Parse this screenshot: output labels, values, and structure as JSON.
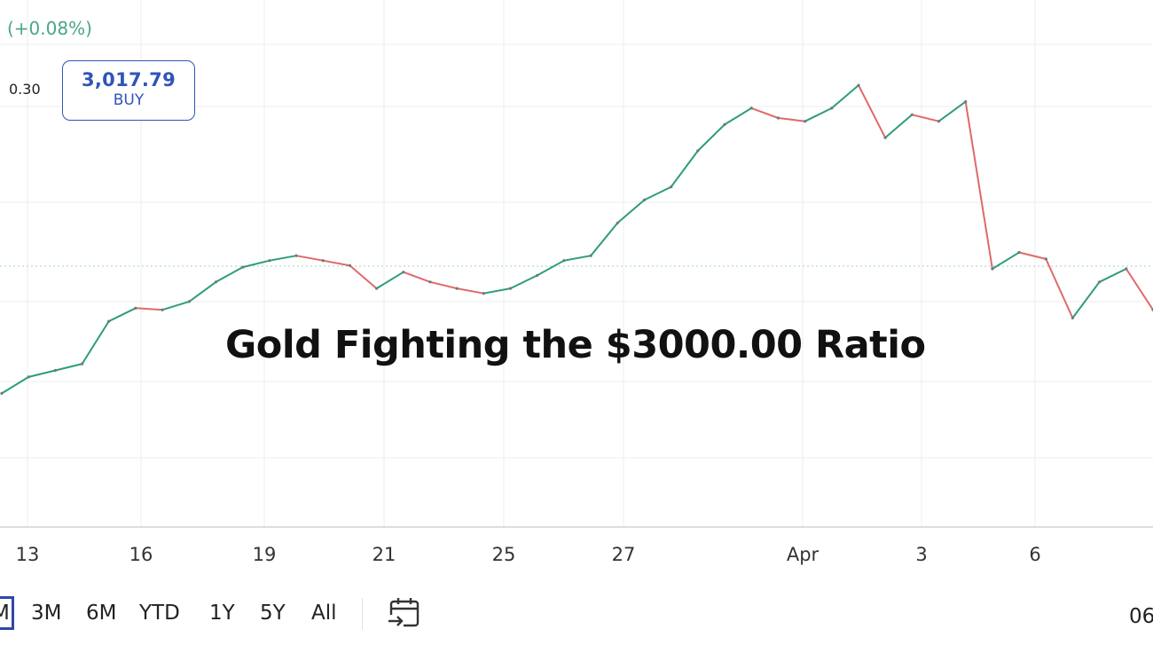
{
  "header": {
    "change": "(+0.08%)",
    "spread": "0.30",
    "buy_price": "3,017.79",
    "buy_label": "BUY"
  },
  "overlay_title": "Gold Fighting the $3000.00 Ratio",
  "range_selector": {
    "buttons": [
      "M",
      "3M",
      "6M",
      "YTD",
      "1Y",
      "5Y",
      "All"
    ],
    "selected": "M",
    "time": "06"
  },
  "colors": {
    "up": "#2d9d78",
    "down": "#e0686b",
    "buy_border": "#2f55b8",
    "change_text": "#4aa68b",
    "selected_range": "#2f47a8"
  },
  "icons": {
    "date_range": "calendar-arrow-icon"
  },
  "chart_data": {
    "type": "line",
    "title": "",
    "xlabel": "",
    "ylabel": "",
    "x_tick_labels": [
      "13",
      "16",
      "19",
      "21",
      "25",
      "27",
      "Apr",
      "3",
      "6"
    ],
    "y_axis": "not shown",
    "grid": true,
    "series": [
      {
        "values": [
          2944,
          2954,
          2958,
          2962,
          2988,
          2996,
          2995,
          3000,
          3012,
          3021,
          3025,
          3028,
          3025,
          3022,
          3008,
          3018,
          3012,
          3008,
          3005,
          3008,
          3016,
          3025,
          3028,
          3048,
          3062,
          3070,
          3092,
          3108,
          3118,
          3112,
          3110,
          3118,
          3132,
          3100,
          3114,
          3110,
          3122,
          3020,
          3030,
          3026,
          2990,
          3012,
          3020,
          2995
        ],
        "range": {
          "min": 2935,
          "max": 3138
        }
      }
    ]
  }
}
